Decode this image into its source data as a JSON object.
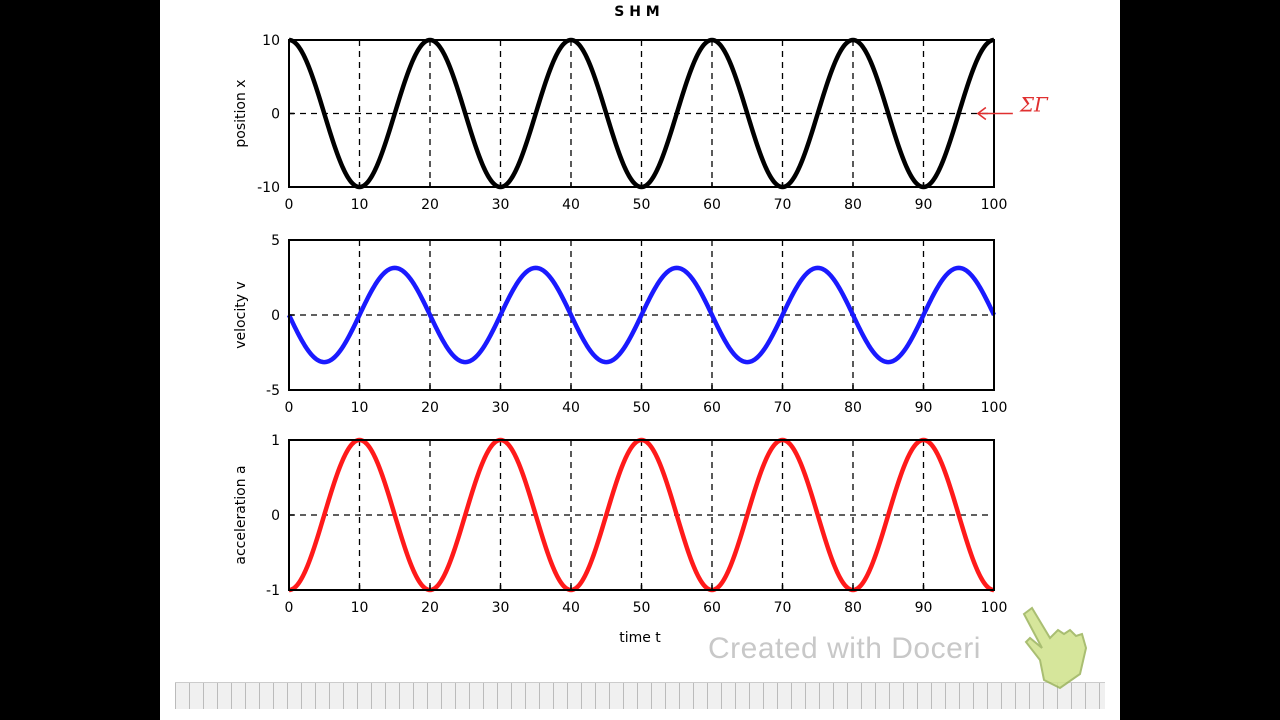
{
  "chart_data": [
    {
      "type": "line",
      "title": "S H M",
      "ylabel": "position  x",
      "xlabel": "",
      "xlim": [
        0,
        100
      ],
      "ylim": [
        -10,
        10
      ],
      "x_ticks": [
        0,
        10,
        20,
        30,
        40,
        50,
        60,
        70,
        80,
        90,
        100
      ],
      "y_ticks": [
        -10,
        0,
        10
      ],
      "grid": true,
      "series": [
        {
          "color": "#000000",
          "function": "10*cos(2*pi*t/20)",
          "amplitude": 10,
          "period": 20
        }
      ],
      "annotation": {
        "text": "← ΣΓ",
        "color": "#e03030",
        "near": [
          97,
          0
        ]
      }
    },
    {
      "type": "line",
      "title": "",
      "ylabel": "velocity  v",
      "xlabel": "",
      "xlim": [
        0,
        100
      ],
      "ylim": [
        -5,
        5
      ],
      "x_ticks": [
        0,
        10,
        20,
        30,
        40,
        50,
        60,
        70,
        80,
        90,
        100
      ],
      "y_ticks": [
        -5,
        0,
        5
      ],
      "grid": true,
      "series": [
        {
          "color": "#1a1aff",
          "function": "-3.14*sin(2*pi*t/20)",
          "amplitude": 3.14,
          "period": 20
        }
      ]
    },
    {
      "type": "line",
      "title": "",
      "ylabel": "acceleration  a",
      "xlabel": "time  t",
      "xlim": [
        0,
        100
      ],
      "ylim": [
        -1,
        1
      ],
      "x_ticks": [
        0,
        10,
        20,
        30,
        40,
        50,
        60,
        70,
        80,
        90,
        100
      ],
      "y_ticks": [
        -1,
        0,
        1
      ],
      "grid": true,
      "series": [
        {
          "color": "#ff1a1a",
          "function": "-1*cos(2*pi*t/20)",
          "amplitude": 1,
          "period": 20
        }
      ]
    }
  ],
  "watermark": {
    "text": "Created with Doceri",
    "icon": "pointing-hand-icon"
  }
}
